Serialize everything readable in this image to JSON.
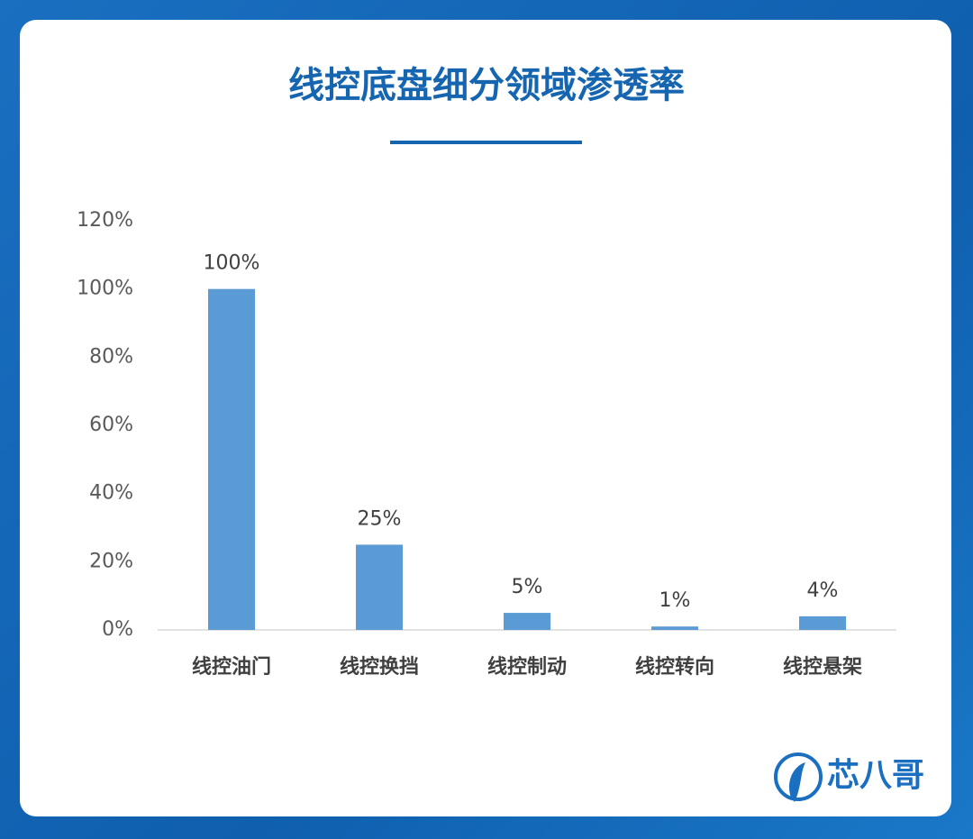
{
  "chart_data": {
    "type": "bar",
    "title": "线控底盘细分领域渗透率",
    "categories": [
      "线控油门",
      "线控换挡",
      "线控制动",
      "线控转向",
      "线控悬架"
    ],
    "values": [
      100,
      25,
      5,
      1,
      4
    ],
    "value_labels": [
      "100%",
      "25%",
      "5%",
      "1%",
      "4%"
    ],
    "color": "#5b9bd5",
    "ylim": [
      0,
      120
    ],
    "yticks": [
      {
        "value": 0,
        "label": "0%"
      },
      {
        "value": 20,
        "label": "20%"
      },
      {
        "value": 40,
        "label": "40%"
      },
      {
        "value": 60,
        "label": "60%"
      },
      {
        "value": 80,
        "label": "80%"
      },
      {
        "value": 100,
        "label": "100%"
      },
      {
        "value": 120,
        "label": "120%"
      }
    ],
    "grid": false
  },
  "brand": "芯八哥"
}
